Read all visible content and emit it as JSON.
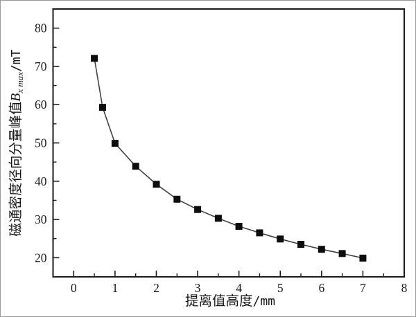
{
  "figure": {
    "xlabel": {
      "cn": "提离值高度",
      "unit": "/mm"
    },
    "ylabel": {
      "cn": "磁通密度径向分量峰值",
      "var": "B",
      "sub": "x max",
      "unit": "/mT"
    }
  },
  "chart_data": {
    "type": "line",
    "title": "",
    "xlabel": "提离值高度/mm",
    "ylabel": "磁通密度径向分量峰值 B_{x max}/mT",
    "x": [
      0.5,
      0.7,
      1,
      1.5,
      2,
      2.5,
      3,
      3.5,
      4,
      4.5,
      5,
      5.5,
      6,
      6.5,
      7
    ],
    "series": [
      {
        "name": "radial flux density peak",
        "values": [
          72.1,
          59.3,
          49.9,
          43.9,
          39.2,
          35.3,
          32.6,
          30.3,
          28.2,
          26.5,
          24.9,
          23.5,
          22.2,
          21.1,
          19.9
        ]
      }
    ],
    "xlim": [
      -0.5,
      8
    ],
    "ylim": [
      15,
      85
    ],
    "x_major_ticks": [
      0,
      1,
      2,
      3,
      4,
      5,
      6,
      7,
      8
    ],
    "y_major_ticks": [
      20,
      30,
      40,
      50,
      60,
      70,
      80
    ],
    "x_minor_step": 0.5,
    "y_minor_step": 5,
    "grid": false,
    "legend": "none",
    "marker": "filled-square",
    "marker_size": 10,
    "colors": {
      "marker": "#0d0d0d",
      "line": "#404040",
      "axis": "#1a1a1a",
      "text": "#1a1a1a",
      "background": "#ffffff"
    }
  }
}
